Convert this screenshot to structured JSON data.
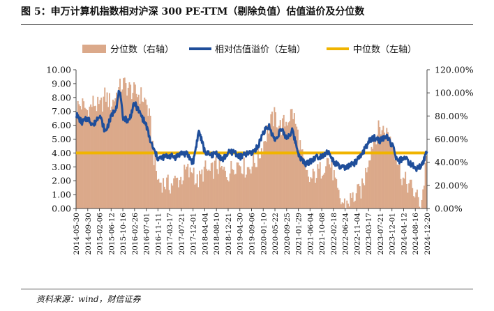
{
  "figure": {
    "title": "图 5：申万计算机指数相对沪深 300 PE-TTM（剔除负值）估值溢价及分位数",
    "source": "资料来源：wind，财信证券"
  },
  "chart_data": {
    "type": "combo",
    "title": "图 5：申万计算机指数相对沪深 300 PE-TTM（剔除负值）估值溢价及分位数",
    "legend": [
      "分位数（右轴）",
      "相对估值溢价（左轴）",
      "中位数（左轴）"
    ],
    "legend_position": "top",
    "grid": false,
    "left_axis": {
      "min": 0,
      "max": 10,
      "step": 1,
      "format": "0.00"
    },
    "right_axis": {
      "min": 0,
      "max": 120,
      "step": 20,
      "format": "0.00%"
    },
    "x_tick_labels": [
      "2014-05-30",
      "2014-09-30",
      "2015-02-06",
      "2015-06-12",
      "2015-10-16",
      "2016-02-26",
      "2016-07-01",
      "2016-11-11",
      "2017-03-17",
      "2017-07-21",
      "2017-12-01",
      "2018-04-04",
      "2018-08-10",
      "2018-12-21",
      "2019-04-30",
      "2019-09-06",
      "2020-01-10",
      "2020-05-22",
      "2020-09-25",
      "2021-01-29",
      "2021-06-04",
      "2021-10-08",
      "2022-02-18",
      "2022-06-24",
      "2022-11-04",
      "2023-03-17",
      "2023-07-21",
      "2023-12-01",
      "2024-04-12",
      "2024-08-16",
      "2024-12-20"
    ],
    "median": 4.0,
    "series": [
      {
        "name": "分位数（右轴）",
        "type": "area",
        "axis": "right",
        "color": "#dba98a",
        "points": [
          [
            0,
            88
          ],
          [
            0.5,
            90
          ],
          [
            1,
            84
          ],
          [
            1.5,
            92
          ],
          [
            2,
            86
          ],
          [
            2.5,
            98
          ],
          [
            3,
            90
          ],
          [
            3.5,
            100
          ],
          [
            4,
            108
          ],
          [
            4.5,
            104
          ],
          [
            5,
            100
          ],
          [
            5.5,
            98
          ],
          [
            6,
            92
          ],
          [
            6.3,
            76
          ],
          [
            6.5,
            60
          ],
          [
            6.7,
            40
          ],
          [
            7,
            24
          ],
          [
            7.5,
            22
          ],
          [
            8,
            20
          ],
          [
            8.5,
            24
          ],
          [
            9,
            26
          ],
          [
            9.5,
            34
          ],
          [
            9.7,
            28
          ],
          [
            10,
            36
          ],
          [
            10.3,
            22
          ],
          [
            10.6,
            26
          ],
          [
            11,
            34
          ],
          [
            11.5,
            30
          ],
          [
            12,
            38
          ],
          [
            12.5,
            32
          ],
          [
            13,
            30
          ],
          [
            13.5,
            38
          ],
          [
            14,
            40
          ],
          [
            14.5,
            34
          ],
          [
            15,
            38
          ],
          [
            15.5,
            42
          ],
          [
            16,
            56
          ],
          [
            16.5,
            72
          ],
          [
            17,
            80
          ],
          [
            17.5,
            70
          ],
          [
            18,
            76
          ],
          [
            18.5,
            84
          ],
          [
            19,
            62
          ],
          [
            19.3,
            46
          ],
          [
            19.6,
            30
          ],
          [
            20,
            24
          ],
          [
            20.5,
            30
          ],
          [
            21,
            34
          ],
          [
            21.5,
            44
          ],
          [
            22,
            30
          ],
          [
            22.3,
            14
          ],
          [
            22.6,
            6
          ],
          [
            23,
            4
          ],
          [
            23.5,
            8
          ],
          [
            24,
            12
          ],
          [
            24.5,
            18
          ],
          [
            25,
            44
          ],
          [
            25.5,
            62
          ],
          [
            26,
            70
          ],
          [
            26.5,
            66
          ],
          [
            27,
            60
          ],
          [
            27.3,
            48
          ],
          [
            27.6,
            36
          ],
          [
            28,
            24
          ],
          [
            28.5,
            20
          ],
          [
            29,
            12
          ],
          [
            29.5,
            4
          ],
          [
            29.8,
            28
          ],
          [
            30,
            58
          ]
        ]
      },
      {
        "name": "相对估值溢价（左轴）",
        "type": "line",
        "axis": "left",
        "color": "#1f4e9a",
        "points": [
          [
            0,
            6.8
          ],
          [
            0.5,
            6.2
          ],
          [
            1,
            6.5
          ],
          [
            1.5,
            6.0
          ],
          [
            2,
            6.8
          ],
          [
            2.5,
            5.5
          ],
          [
            3,
            6.6
          ],
          [
            3.5,
            7.5
          ],
          [
            3.7,
            8.6
          ],
          [
            4,
            6.6
          ],
          [
            4.5,
            6.3
          ],
          [
            5,
            7.6
          ],
          [
            5.5,
            6.8
          ],
          [
            6,
            6.0
          ],
          [
            6.3,
            5.0
          ],
          [
            6.6,
            4.3
          ],
          [
            7,
            3.6
          ],
          [
            7.5,
            3.7
          ],
          [
            8,
            3.8
          ],
          [
            8.5,
            3.7
          ],
          [
            9,
            4.0
          ],
          [
            9.5,
            3.9
          ],
          [
            10,
            3.3
          ],
          [
            10.5,
            5.6
          ],
          [
            11,
            4.1
          ],
          [
            11.5,
            3.8
          ],
          [
            12,
            4.0
          ],
          [
            12.5,
            3.5
          ],
          [
            13,
            4.0
          ],
          [
            13.5,
            4.1
          ],
          [
            14,
            3.7
          ],
          [
            14.5,
            3.9
          ],
          [
            15,
            4.0
          ],
          [
            15.5,
            4.4
          ],
          [
            16,
            5.5
          ],
          [
            16.5,
            5.9
          ],
          [
            17,
            4.9
          ],
          [
            17.5,
            5.7
          ],
          [
            18,
            5.1
          ],
          [
            18.5,
            5.6
          ],
          [
            19,
            4.0
          ],
          [
            19.3,
            3.5
          ],
          [
            19.6,
            3.2
          ],
          [
            20,
            3.4
          ],
          [
            20.5,
            3.7
          ],
          [
            21,
            3.8
          ],
          [
            21.5,
            4.1
          ],
          [
            22,
            3.4
          ],
          [
            22.5,
            3.0
          ],
          [
            23,
            2.9
          ],
          [
            23.5,
            3.1
          ],
          [
            24,
            3.4
          ],
          [
            24.5,
            4.0
          ],
          [
            25,
            4.8
          ],
          [
            25.5,
            5.1
          ],
          [
            26,
            4.9
          ],
          [
            26.5,
            5.2
          ],
          [
            27,
            4.6
          ],
          [
            27.5,
            3.3
          ],
          [
            28,
            3.7
          ],
          [
            28.5,
            3.3
          ],
          [
            29,
            2.9
          ],
          [
            29.5,
            3.0
          ],
          [
            30,
            4.1
          ]
        ]
      },
      {
        "name": "中位数（左轴）",
        "type": "line",
        "axis": "left",
        "color": "#f0b400",
        "values": "constant 4.00"
      }
    ]
  }
}
